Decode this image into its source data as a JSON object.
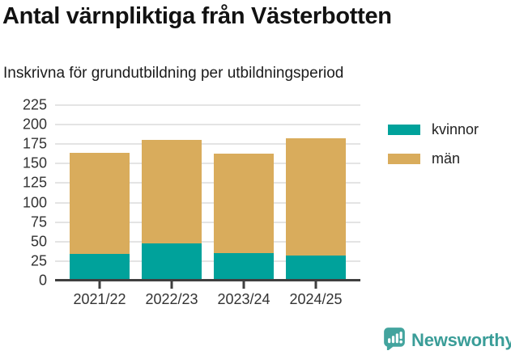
{
  "header": {
    "title": "Antal värnpliktiga från Västerbotten",
    "subtitle": "Inskrivna för grundutbildning per utbildningsperiod"
  },
  "chart_data": {
    "type": "bar",
    "stacked": true,
    "title": "Antal värnpliktiga från Västerbotten",
    "subtitle": "Inskrivna för grundutbildning per utbildningsperiod",
    "categories": [
      "2021/22",
      "2022/23",
      "2023/24",
      "2024/25"
    ],
    "series": [
      {
        "name": "kvinnor",
        "color": "#00a29b",
        "values": [
          34,
          48,
          35,
          32
        ]
      },
      {
        "name": "män",
        "color": "#d9ac5c",
        "values": [
          130,
          132,
          128,
          151
        ]
      }
    ],
    "totals": [
      164,
      180,
      163,
      183
    ],
    "xlabel": "",
    "ylabel": "",
    "ylim": [
      0,
      225
    ],
    "yticks": [
      0,
      25,
      50,
      75,
      100,
      125,
      150,
      175,
      200,
      225
    ],
    "grid": true,
    "legend_position": "right"
  },
  "footer": {
    "brand": "Newsworthy",
    "brand_color": "#3a9d98",
    "icon": "newsworthy-chart-bubble-icon"
  },
  "colors": {
    "kvinnor": "#00a29b",
    "man": "#d9ac5c",
    "gridline": "#e4e4e4",
    "axis_line": "#3f3f3f",
    "axis_text": "#333333"
  }
}
